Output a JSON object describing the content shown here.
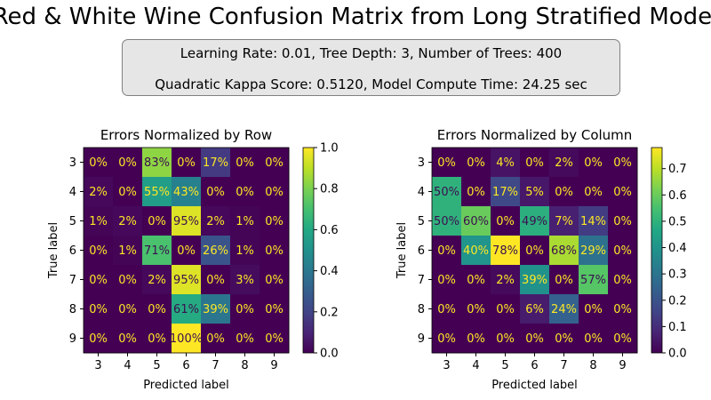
{
  "title": "Red & White Wine Confusion Matrix from Long Stratified Model",
  "info": {
    "line1": "Learning Rate: 0.01, Tree Depth: 3, Number of Trees: 400",
    "line2": "Quadratic Kappa Score: 0.5120,  Model Compute Time: 24.25 sec"
  },
  "chart_data": [
    {
      "type": "heatmap",
      "title": "Errors Normalized by Row",
      "xlabel": "Predicted label",
      "ylabel": "True label",
      "x_categories": [
        "3",
        "4",
        "5",
        "6",
        "7",
        "8",
        "9"
      ],
      "y_categories": [
        "3",
        "4",
        "5",
        "6",
        "7",
        "8",
        "9"
      ],
      "colormap": "viridis",
      "vmin": 0,
      "vmax": 1.0,
      "colorbar_ticks": [
        "0.0",
        "0.2",
        "0.4",
        "0.6",
        "0.8",
        "1.0"
      ],
      "values": [
        [
          0.0,
          0.0,
          0.83,
          0.0,
          0.17,
          0.0,
          0.0
        ],
        [
          0.02,
          0.0,
          0.55,
          0.43,
          0.0,
          0.0,
          0.0
        ],
        [
          0.01,
          0.02,
          0.0,
          0.95,
          0.02,
          0.01,
          0.0
        ],
        [
          0.0,
          0.01,
          0.71,
          0.0,
          0.26,
          0.01,
          0.0
        ],
        [
          0.0,
          0.0,
          0.02,
          0.95,
          0.0,
          0.03,
          0.0
        ],
        [
          0.0,
          0.0,
          0.0,
          0.61,
          0.39,
          0.0,
          0.0
        ],
        [
          0.0,
          0.0,
          0.0,
          1.0,
          0.0,
          0.0,
          0.0
        ]
      ],
      "labels": [
        [
          "0%",
          "0%",
          "83%",
          "0%",
          "17%",
          "0%",
          "0%"
        ],
        [
          "2%",
          "0%",
          "55%",
          "43%",
          "0%",
          "0%",
          "0%"
        ],
        [
          "1%",
          "2%",
          "0%",
          "95%",
          "2%",
          "1%",
          "0%"
        ],
        [
          "0%",
          "1%",
          "71%",
          "0%",
          "26%",
          "1%",
          "0%"
        ],
        [
          "0%",
          "0%",
          "2%",
          "95%",
          "0%",
          "3%",
          "0%"
        ],
        [
          "0%",
          "0%",
          "0%",
          "61%",
          "39%",
          "0%",
          "0%"
        ],
        [
          "0%",
          "0%",
          "0%",
          "100%",
          "0%",
          "0%",
          "0%"
        ]
      ]
    },
    {
      "type": "heatmap",
      "title": "Errors Normalized by Column",
      "xlabel": "Predicted label",
      "ylabel": "True label",
      "x_categories": [
        "3",
        "4",
        "5",
        "6",
        "7",
        "8",
        "9"
      ],
      "y_categories": [
        "3",
        "4",
        "5",
        "6",
        "7",
        "8",
        "9"
      ],
      "colormap": "viridis",
      "vmin": 0,
      "vmax": 0.78,
      "colorbar_ticks": [
        "0.0",
        "0.1",
        "0.2",
        "0.3",
        "0.4",
        "0.5",
        "0.6",
        "0.7"
      ],
      "values": [
        [
          0.0,
          0.0,
          0.04,
          0.0,
          0.02,
          0.0,
          0.0
        ],
        [
          0.5,
          0.0,
          0.17,
          0.05,
          0.0,
          0.0,
          0.0
        ],
        [
          0.5,
          0.6,
          0.0,
          0.49,
          0.07,
          0.14,
          0.0
        ],
        [
          0.0,
          0.4,
          0.78,
          0.0,
          0.68,
          0.29,
          0.0
        ],
        [
          0.0,
          0.0,
          0.02,
          0.39,
          0.0,
          0.57,
          0.0
        ],
        [
          0.0,
          0.0,
          0.0,
          0.06,
          0.24,
          0.0,
          0.0
        ],
        [
          0.0,
          0.0,
          0.0,
          0.0,
          0.0,
          0.0,
          0.0
        ]
      ],
      "labels": [
        [
          "0%",
          "0%",
          "4%",
          "0%",
          "2%",
          "0%",
          "0%"
        ],
        [
          "50%",
          "0%",
          "17%",
          "5%",
          "0%",
          "0%",
          "0%"
        ],
        [
          "50%",
          "60%",
          "0%",
          "49%",
          "7%",
          "14%",
          "0%"
        ],
        [
          "0%",
          "40%",
          "78%",
          "0%",
          "68%",
          "29%",
          "0%"
        ],
        [
          "0%",
          "0%",
          "2%",
          "39%",
          "0%",
          "57%",
          "0%"
        ],
        [
          "0%",
          "0%",
          "0%",
          "6%",
          "24%",
          "0%",
          "0%"
        ],
        [
          "0%",
          "0%",
          "0%",
          "0%",
          "0%",
          "0%",
          "0%"
        ]
      ]
    }
  ]
}
